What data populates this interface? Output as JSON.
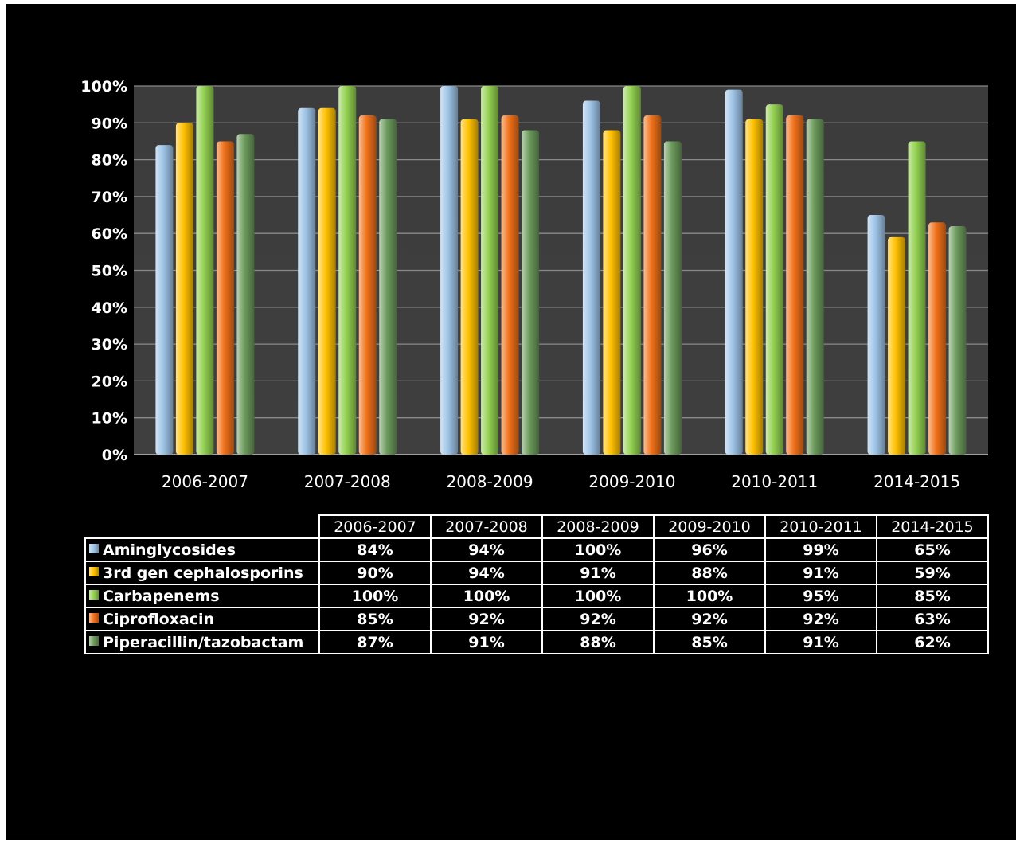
{
  "chart_data": {
    "type": "bar",
    "categories": [
      "2006-2007",
      "2007-2008",
      "2008-2009",
      "2009-2010",
      "2010-2011",
      "2014-2015"
    ],
    "ylim": [
      0,
      100
    ],
    "yticks": [
      "0%",
      "10%",
      "20%",
      "30%",
      "40%",
      "50%",
      "60%",
      "70%",
      "80%",
      "90%",
      "100%"
    ],
    "grid": true,
    "legend": "table-below",
    "series": [
      {
        "name": "Aminglycosides",
        "color": "#9dc3e6",
        "values": [
          84,
          94,
          100,
          96,
          99,
          65
        ],
        "labels": [
          "84%",
          "94%",
          "100%",
          "96%",
          "99%",
          "65%"
        ]
      },
      {
        "name": "3rd gen cephalosporins",
        "color": "#ffc000",
        "values": [
          90,
          94,
          91,
          88,
          91,
          59
        ],
        "labels": [
          "90%",
          "94%",
          "91%",
          "88%",
          "91%",
          "59%"
        ]
      },
      {
        "name": "Carbapenems",
        "color": "#92d050",
        "values": [
          100,
          100,
          100,
          100,
          95,
          85
        ],
        "labels": [
          "100%",
          "100%",
          "100%",
          "100%",
          "95%",
          "85%"
        ]
      },
      {
        "name": "Ciprofloxacin",
        "color": "#f07018",
        "values": [
          85,
          92,
          92,
          92,
          92,
          63
        ],
        "labels": [
          "85%",
          "92%",
          "92%",
          "92%",
          "92%",
          "63%"
        ]
      },
      {
        "name": "Piperacillin/tazobactam",
        "color": "#6b9a5b",
        "values": [
          87,
          91,
          88,
          85,
          91,
          62
        ],
        "labels": [
          "87%",
          "91%",
          "88%",
          "85%",
          "91%",
          "62%"
        ]
      }
    ]
  }
}
